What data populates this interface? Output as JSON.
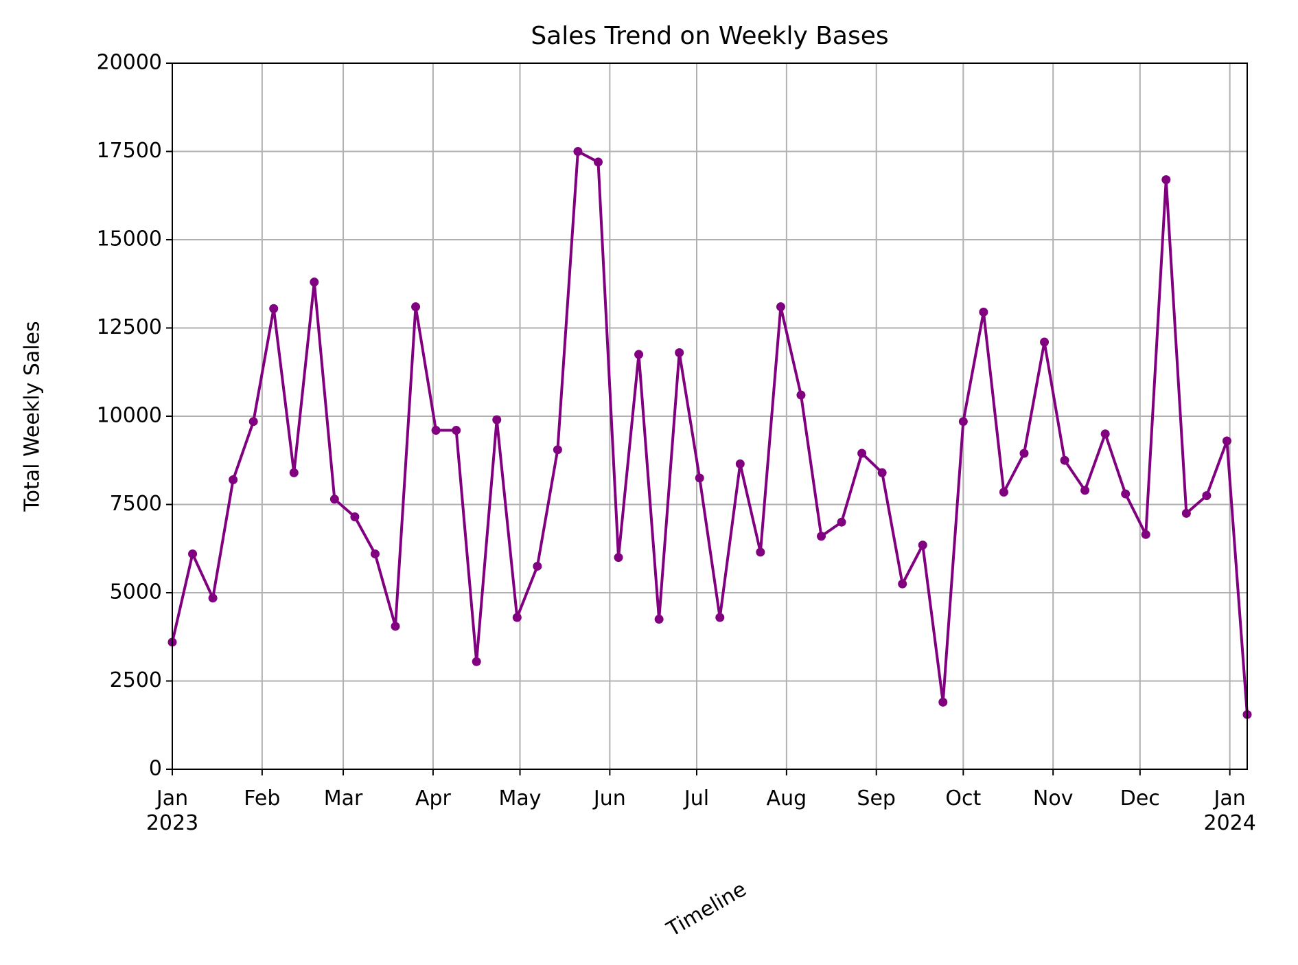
{
  "chart_data": {
    "type": "line",
    "title": "Sales Trend on Weekly Bases",
    "x_label": "Timeline",
    "y_label": "Total Weekly Sales",
    "x": [
      "2023-01-01",
      "2023-01-08",
      "2023-01-15",
      "2023-01-22",
      "2023-01-29",
      "2023-02-05",
      "2023-02-12",
      "2023-02-19",
      "2023-02-26",
      "2023-03-05",
      "2023-03-12",
      "2023-03-19",
      "2023-03-26",
      "2023-04-02",
      "2023-04-09",
      "2023-04-16",
      "2023-04-23",
      "2023-04-30",
      "2023-05-07",
      "2023-05-14",
      "2023-05-21",
      "2023-05-28",
      "2023-06-04",
      "2023-06-11",
      "2023-06-18",
      "2023-06-25",
      "2023-07-02",
      "2023-07-09",
      "2023-07-16",
      "2023-07-23",
      "2023-07-30",
      "2023-08-06",
      "2023-08-13",
      "2023-08-20",
      "2023-08-27",
      "2023-09-03",
      "2023-09-10",
      "2023-09-17",
      "2023-09-24",
      "2023-10-01",
      "2023-10-08",
      "2023-10-15",
      "2023-10-22",
      "2023-10-29",
      "2023-11-05",
      "2023-11-12",
      "2023-11-19",
      "2023-11-26",
      "2023-12-03",
      "2023-12-10",
      "2023-12-17",
      "2023-12-24",
      "2023-12-31",
      "2024-01-07"
    ],
    "series": [
      {
        "name": "Total Weekly Sales",
        "color": "#800080",
        "values": [
          3600,
          6100,
          4850,
          8200,
          9850,
          13050,
          8400,
          13800,
          7650,
          7150,
          6100,
          4050,
          13100,
          9600,
          9600,
          3050,
          9900,
          4300,
          5750,
          9050,
          17500,
          17200,
          6000,
          11750,
          4250,
          11800,
          8250,
          4300,
          8650,
          6150,
          13100,
          10600,
          6600,
          7000,
          8950,
          8400,
          5250,
          6350,
          1900,
          9850,
          12950,
          7850,
          8950,
          12100,
          8750,
          7900,
          9500,
          7800,
          6650,
          16700,
          7250,
          7750,
          9300,
          1550
        ]
      }
    ],
    "xlim": [
      "2023-01-01",
      "2024-01-07"
    ],
    "xticks": [
      {
        "value": "2023-01-01",
        "label": "Jan 2023"
      },
      {
        "value": "2023-02-01",
        "label": "Feb"
      },
      {
        "value": "2023-03-01",
        "label": "Mar"
      },
      {
        "value": "2023-04-01",
        "label": "Apr"
      },
      {
        "value": "2023-05-01",
        "label": "May"
      },
      {
        "value": "2023-06-01",
        "label": "Jun"
      },
      {
        "value": "2023-07-01",
        "label": "Jul"
      },
      {
        "value": "2023-08-01",
        "label": "Aug"
      },
      {
        "value": "2023-09-01",
        "label": "Sep"
      },
      {
        "value": "2023-10-01",
        "label": "Oct"
      },
      {
        "value": "2023-11-01",
        "label": "Nov"
      },
      {
        "value": "2023-12-01",
        "label": "Dec"
      },
      {
        "value": "2024-01-01",
        "label": "Jan 2024"
      }
    ],
    "ylim": [
      0,
      20000
    ],
    "yticks": [
      0,
      2500,
      5000,
      7500,
      10000,
      12500,
      15000,
      17500,
      20000
    ],
    "grid": true
  }
}
